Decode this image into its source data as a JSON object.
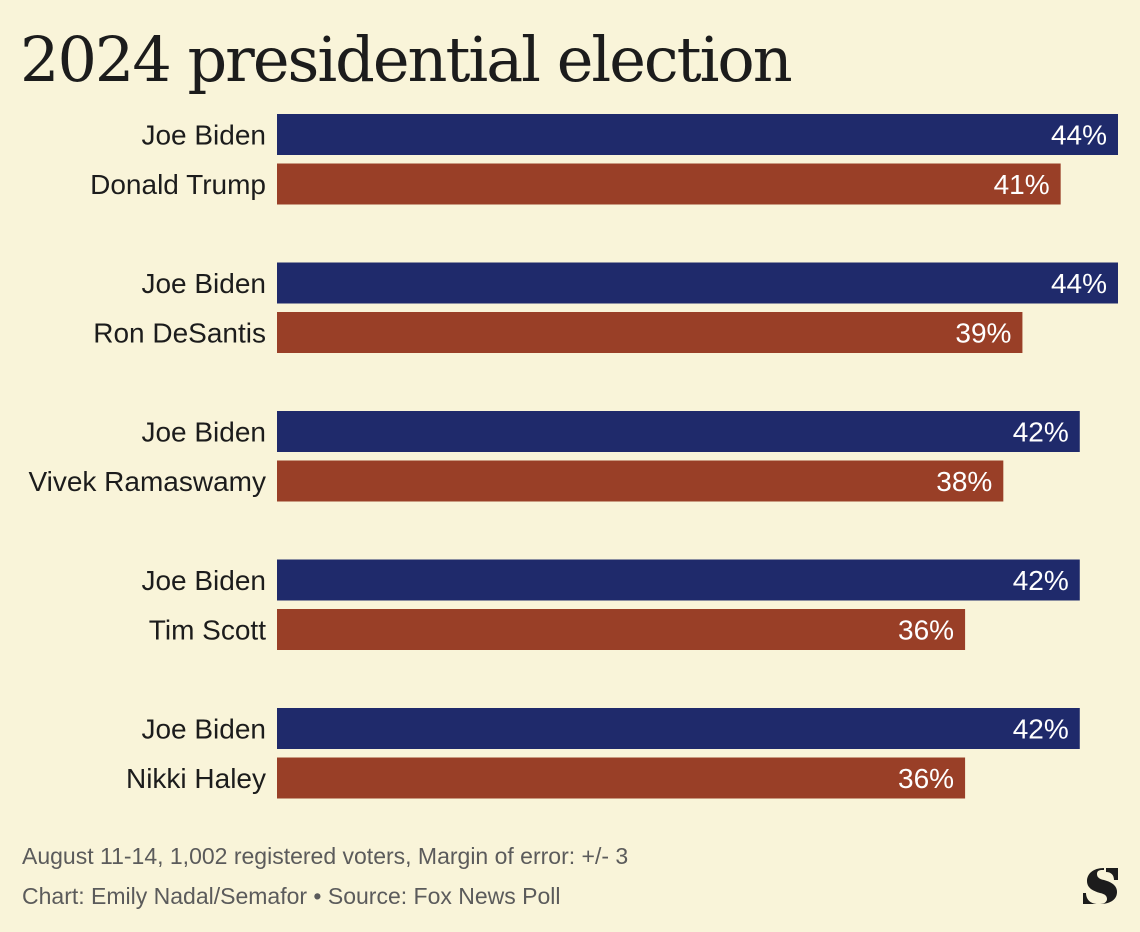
{
  "header": {
    "title": "2024 presidential election"
  },
  "footer": {
    "note": "August 11-14, 1,002 registered voters, Margin of error: +/- 3",
    "credit": "Chart: Emily Nadal/Semafor • Source: Fox News Poll"
  },
  "colors": {
    "background": "#f9f4d9",
    "democrat": "#1f2a6b",
    "republican": "#993f27",
    "text": "#1c1c1c",
    "muted": "#5b5b5b"
  },
  "logo": {
    "icon": "semafor-s-logo-icon"
  },
  "chart_data": {
    "type": "bar",
    "orientation": "horizontal",
    "unit": "%",
    "xlim": [
      0,
      44
    ],
    "grid": false,
    "legend": "none",
    "groups": [
      {
        "bars": [
          {
            "label": "Joe Biden",
            "value": 44,
            "party": "democrat"
          },
          {
            "label": "Donald Trump",
            "value": 41,
            "party": "republican"
          }
        ]
      },
      {
        "bars": [
          {
            "label": "Joe Biden",
            "value": 44,
            "party": "democrat"
          },
          {
            "label": "Ron DeSantis",
            "value": 39,
            "party": "republican"
          }
        ]
      },
      {
        "bars": [
          {
            "label": "Joe Biden",
            "value": 42,
            "party": "democrat"
          },
          {
            "label": "Vivek Ramaswamy",
            "value": 38,
            "party": "republican"
          }
        ]
      },
      {
        "bars": [
          {
            "label": "Joe Biden",
            "value": 42,
            "party": "democrat"
          },
          {
            "label": "Tim Scott",
            "value": 36,
            "party": "republican"
          }
        ]
      },
      {
        "bars": [
          {
            "label": "Joe Biden",
            "value": 42,
            "party": "democrat"
          },
          {
            "label": "Nikki Haley",
            "value": 36,
            "party": "republican"
          }
        ]
      }
    ]
  }
}
